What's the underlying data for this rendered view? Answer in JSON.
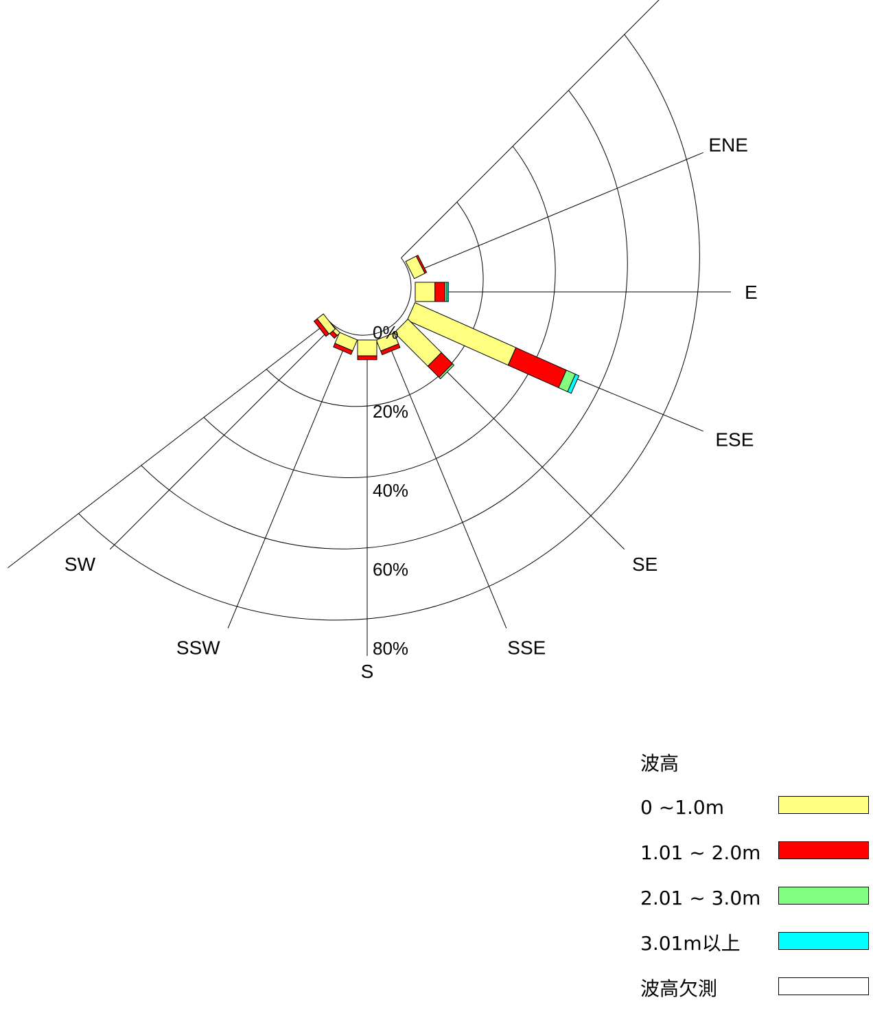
{
  "chart_data": {
    "type": "wind-rose",
    "directions": [
      "ENE",
      "E",
      "ESE",
      "SE",
      "SSE",
      "S",
      "SSW",
      "SW"
    ],
    "ring_labels": [
      "0%",
      "20%",
      "40%",
      "60%",
      "80%"
    ],
    "rmax": 80,
    "series": [
      {
        "name": "0 ~1.0m",
        "color": "#ffff80",
        "values": [
          3,
          5,
          28,
          12,
          3,
          4,
          3,
          1,
          2
        ]
      },
      {
        "name": "1.01 ~ 2.0m",
        "color": "#ff0000",
        "values": [
          0.5,
          2.5,
          14,
          4,
          1,
          1,
          1,
          1,
          1
        ]
      },
      {
        "name": "2.01 ~ 3.0m",
        "color": "#80ff80",
        "values": [
          0,
          0.5,
          2.5,
          0.5,
          0,
          0,
          0,
          0,
          0
        ]
      },
      {
        "name": "3.01m以上",
        "color": "#00ffff",
        "values": [
          0,
          0.4,
          1,
          0,
          0,
          0,
          0,
          0,
          0
        ]
      },
      {
        "name": "波高欠測",
        "color": "#ffffff",
        "values": [
          0,
          0,
          0,
          0,
          0,
          0,
          0,
          0,
          0
        ]
      }
    ],
    "bar_angles_deg": [
      63,
      90,
      114,
      135,
      158,
      180,
      203,
      225,
      232
    ],
    "legend_title": "波高",
    "legend_position": "bottom-right"
  }
}
